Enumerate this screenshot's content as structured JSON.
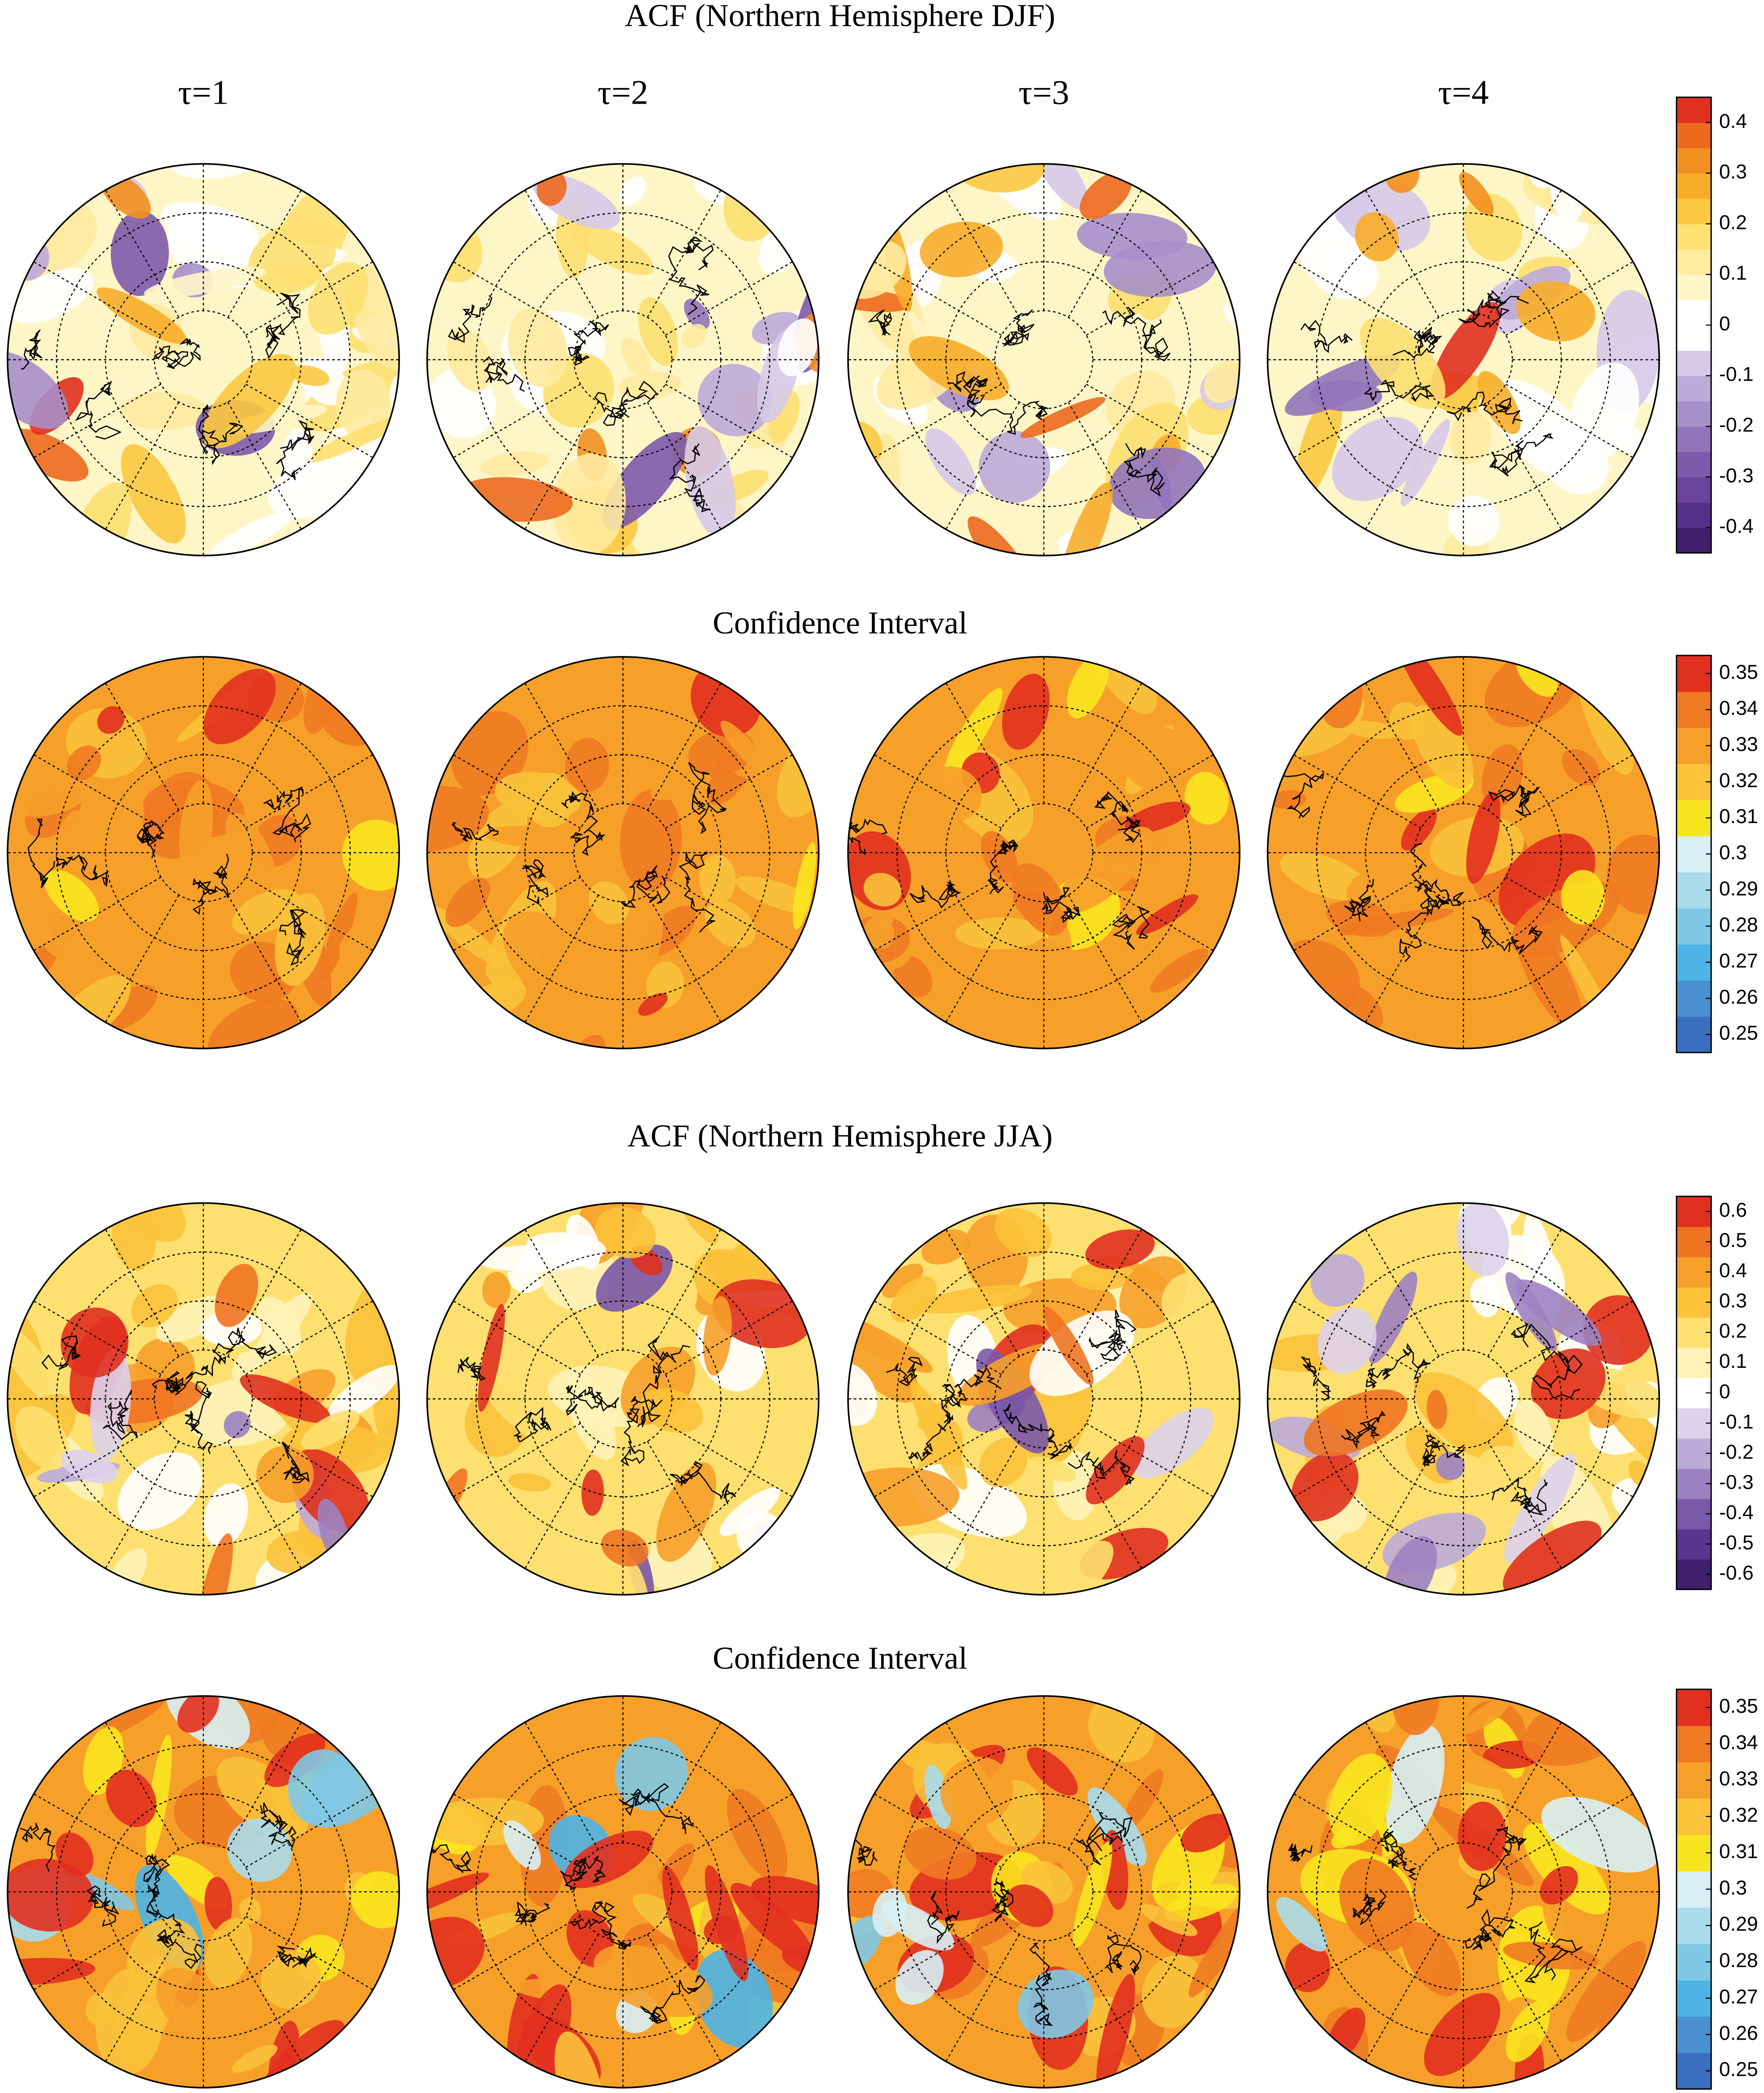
{
  "rows": [
    {
      "title": "ACF (Northern Hemisphere DJF)",
      "column_labels": [
        "τ=1",
        "τ=2",
        "τ=3",
        "τ=4"
      ],
      "colorbar": {
        "lim": [
          -0.45,
          0.45
        ],
        "ticks": [
          0.4,
          0.3,
          0.2,
          0.1,
          0,
          -0.1,
          -0.2,
          -0.3,
          -0.4
        ],
        "colors": [
          "#3f1f6e",
          "#55308a",
          "#6a449c",
          "#7d5aab",
          "#9274bb",
          "#a78fca",
          "#bcaad8",
          "#d6c9e8",
          "#ffffff",
          "#ffffff",
          "#fff6c8",
          "#ffeaa0",
          "#fde070",
          "#fbc940",
          "#f7ad2a",
          "#f3901f",
          "#ec6a1e",
          "#e03120"
        ]
      }
    },
    {
      "title": "Confidence Interval",
      "colorbar": {
        "lim": [
          0.245,
          0.355
        ],
        "ticks": [
          0.35,
          0.34,
          0.33,
          0.32,
          0.31,
          0.3,
          0.29,
          0.28,
          0.27,
          0.26,
          0.25
        ],
        "colors": [
          "#3a6fbf",
          "#4a8fd0",
          "#4db4e6",
          "#7ec8e6",
          "#a8dcec",
          "#d7eff5",
          "#f9e51f",
          "#fbc23a",
          "#f6a02a",
          "#f07a22",
          "#e2301f"
        ]
      }
    },
    {
      "title": "ACF (Northern Hemisphere JJA)",
      "colorbar": {
        "lim": [
          -0.65,
          0.65
        ],
        "ticks": [
          0.6,
          0.5,
          0.4,
          0.3,
          0.2,
          0.1,
          0,
          -0.1,
          -0.2,
          -0.3,
          -0.4,
          -0.5,
          -0.6
        ],
        "colors": [
          "#3f1f6e",
          "#5a3590",
          "#7a58aa",
          "#9c82c2",
          "#bcaad8",
          "#ddd2ec",
          "#ffffff",
          "#fff3b8",
          "#fde070",
          "#fbc23a",
          "#f6a02a",
          "#ef7422",
          "#e03120"
        ]
      }
    },
    {
      "title": "Confidence Interval",
      "colorbar": {
        "lim": [
          0.245,
          0.355
        ],
        "ticks": [
          0.35,
          0.34,
          0.33,
          0.32,
          0.31,
          0.3,
          0.29,
          0.28,
          0.27,
          0.26,
          0.25
        ],
        "colors": [
          "#3a6fbf",
          "#4a8fd0",
          "#4db4e6",
          "#7ec8e6",
          "#a8dcec",
          "#d7eff5",
          "#f9e51f",
          "#fbc23a",
          "#f6a02a",
          "#f07a22",
          "#e2301f"
        ]
      }
    }
  ]
}
